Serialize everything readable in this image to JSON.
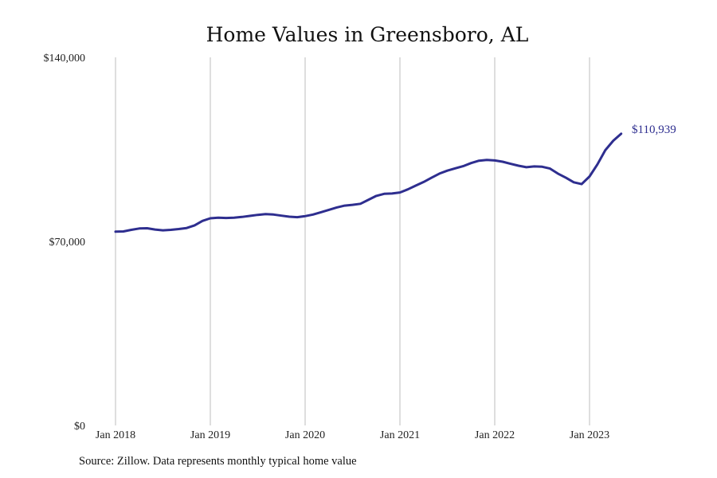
{
  "chart_data": {
    "type": "line",
    "title": "Home Values in Greensboro, AL",
    "xlabel": "",
    "ylabel": "",
    "ylim": [
      0,
      140000
    ],
    "y_ticks": [
      0,
      70000,
      140000
    ],
    "y_tick_labels": [
      "$0",
      "$70,000",
      "$140,000"
    ],
    "x_ticks": [
      "Jan 2018",
      "Jan 2019",
      "Jan 2020",
      "Jan 2021",
      "Jan 2022",
      "Jan 2023"
    ],
    "grid": "vertical",
    "legend": "none",
    "end_label": "$110,939",
    "series": [
      {
        "color": "#2e2e8f",
        "x": [
          "2018-01",
          "2018-02",
          "2018-03",
          "2018-04",
          "2018-05",
          "2018-06",
          "2018-07",
          "2018-08",
          "2018-09",
          "2018-10",
          "2018-11",
          "2018-12",
          "2019-01",
          "2019-02",
          "2019-03",
          "2019-04",
          "2019-05",
          "2019-06",
          "2019-07",
          "2019-08",
          "2019-09",
          "2019-10",
          "2019-11",
          "2019-12",
          "2020-01",
          "2020-02",
          "2020-03",
          "2020-04",
          "2020-05",
          "2020-06",
          "2020-07",
          "2020-08",
          "2020-09",
          "2020-10",
          "2020-11",
          "2020-12",
          "2021-01",
          "2021-02",
          "2021-03",
          "2021-04",
          "2021-05",
          "2021-06",
          "2021-07",
          "2021-08",
          "2021-09",
          "2021-10",
          "2021-11",
          "2021-12",
          "2022-01",
          "2022-02",
          "2022-03",
          "2022-04",
          "2022-05",
          "2022-06",
          "2022-07",
          "2022-08",
          "2022-09",
          "2022-10",
          "2022-11",
          "2022-12",
          "2023-01",
          "2023-02",
          "2023-03",
          "2023-04",
          "2023-05"
        ],
        "values": [
          73700,
          73800,
          74400,
          74900,
          75000,
          74500,
          74200,
          74400,
          74700,
          75100,
          76100,
          77800,
          78800,
          79000,
          78900,
          79000,
          79300,
          79700,
          80100,
          80400,
          80200,
          79800,
          79400,
          79200,
          79600,
          80200,
          81100,
          82000,
          82900,
          83600,
          83900,
          84300,
          85800,
          87300,
          88100,
          88200,
          88600,
          89800,
          91200,
          92600,
          94200,
          95800,
          96900,
          97800,
          98600,
          99800,
          100700,
          101000,
          100800,
          100300,
          99500,
          98800,
          98200,
          98500,
          98400,
          97700,
          95800,
          94200,
          92500,
          91800,
          94700,
          99300,
          104700,
          108300,
          110939
        ]
      }
    ]
  },
  "source": "Source: Zillow. Data represents monthly typical home value"
}
